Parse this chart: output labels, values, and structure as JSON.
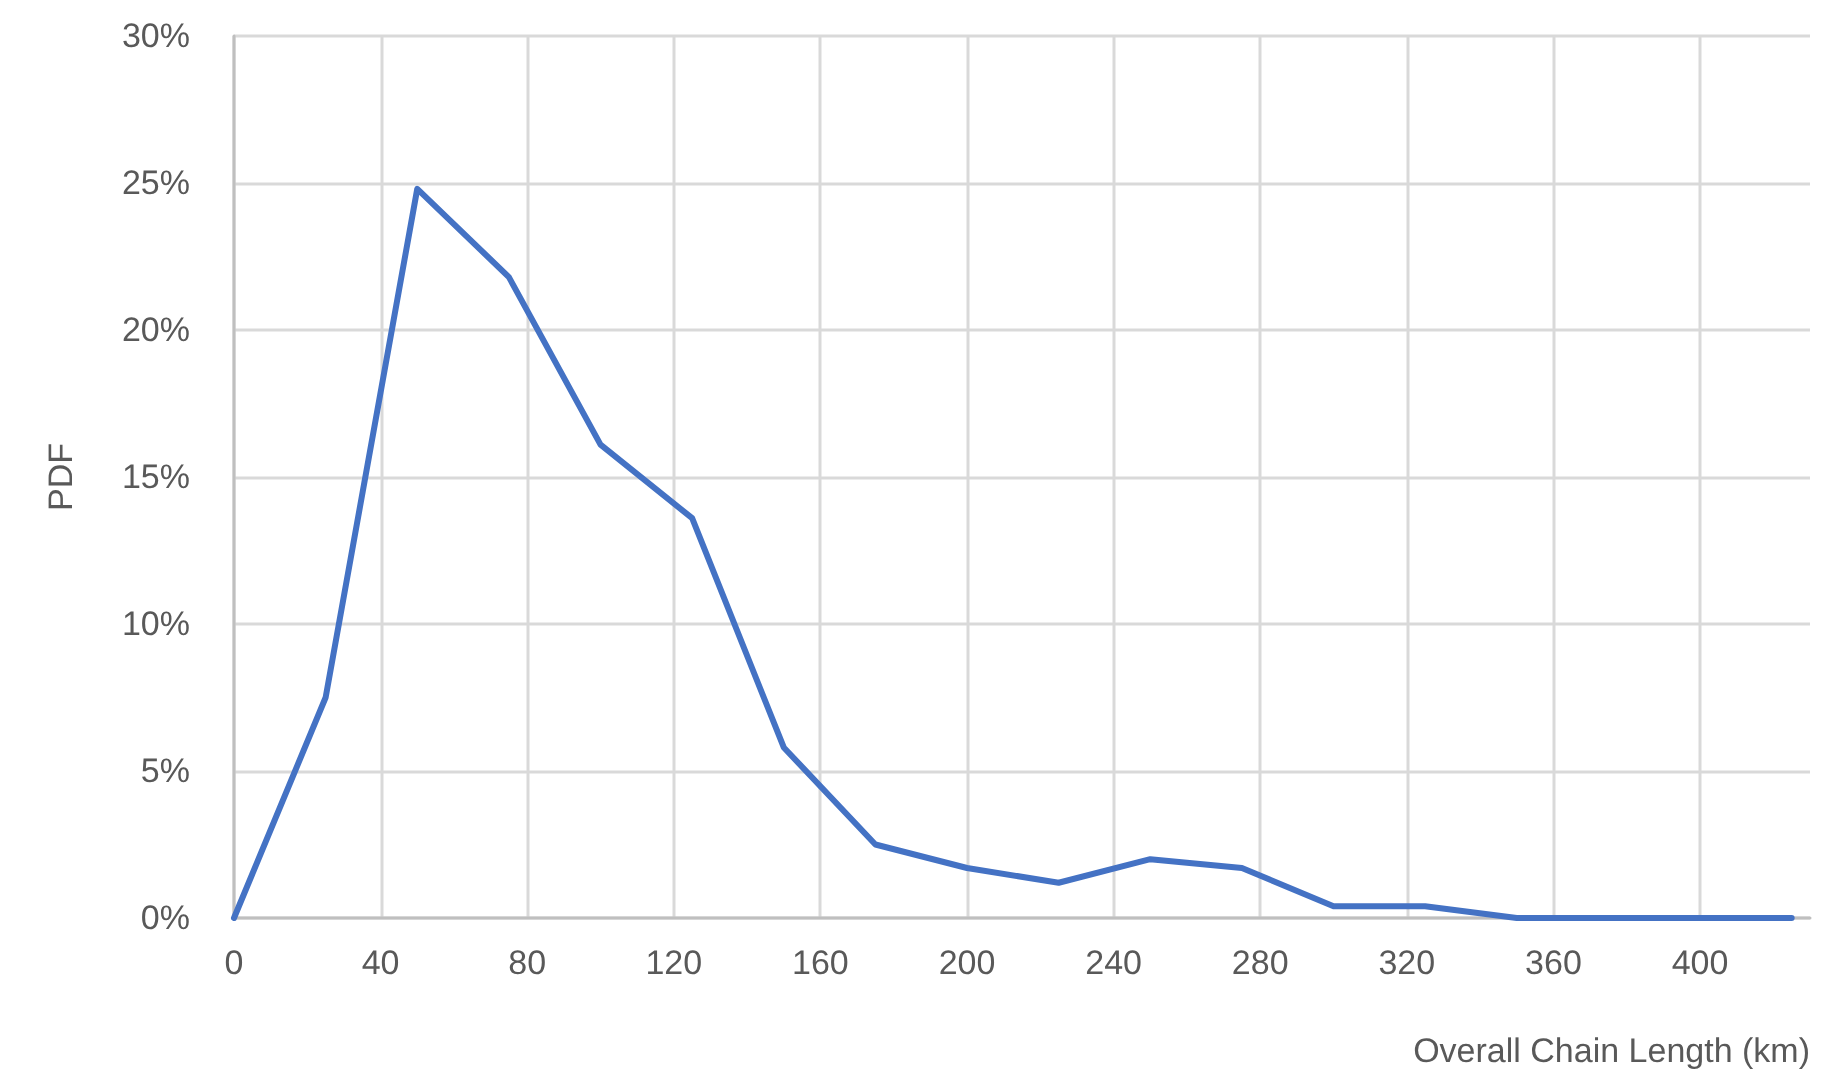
{
  "chart_data": {
    "type": "line",
    "xlabel": "Overall Chain Length (km)",
    "ylabel": "PDF",
    "x": [
      0,
      25,
      50,
      75,
      100,
      125,
      150,
      175,
      200,
      225,
      250,
      275,
      300,
      325,
      350,
      375,
      400,
      425
    ],
    "series": [
      {
        "color": "#4472c4",
        "values": [
          0,
          7.5,
          24.8,
          21.8,
          16.1,
          13.6,
          5.8,
          2.5,
          1.7,
          1.2,
          2.0,
          1.7,
          0.4,
          0.4,
          0,
          0,
          0,
          0
        ]
      }
    ],
    "xlim": [
      0,
      430
    ],
    "xticks": [
      0,
      40,
      80,
      120,
      160,
      200,
      240,
      280,
      320,
      360,
      400
    ],
    "ylim": [
      0,
      30
    ],
    "yticks": [
      {
        "value": 0,
        "label": "0%"
      },
      {
        "value": 5,
        "label": "5%"
      },
      {
        "value": 10,
        "label": "10%"
      },
      {
        "value": 15,
        "label": "15%"
      },
      {
        "value": 20,
        "label": "20%"
      },
      {
        "value": 25,
        "label": "25%"
      },
      {
        "value": 30,
        "label": "30%"
      }
    ],
    "grid": true,
    "marker": "none",
    "line_style": "solid"
  }
}
